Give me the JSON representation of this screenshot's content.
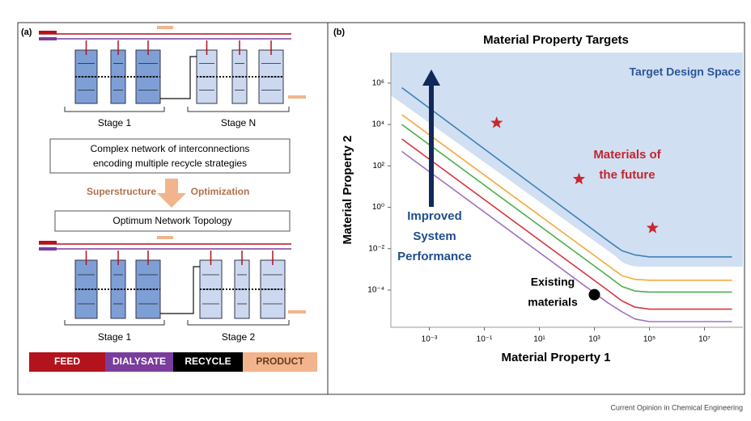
{
  "panel_a": {
    "label": "(a)",
    "top_stages": [
      "Stage 1",
      "Stage N"
    ],
    "network_box": [
      "Complex network of interconnections",
      "encoding multiple recycle strategies"
    ],
    "arrow_texts": [
      "Superstructure",
      "Optimization"
    ],
    "result_box": "Optimum Network Topology",
    "bottom_stages": [
      "Stage 1",
      "Stage 2"
    ],
    "legend": [
      {
        "text": "FEED",
        "color": "#b3131c"
      },
      {
        "text": "DIALYSATE",
        "color": "#7a3d9c"
      },
      {
        "text": "RECYCLE",
        "color": "#000000"
      },
      {
        "text": "PRODUCT",
        "color": "#f2b48c"
      }
    ]
  },
  "chart_data": {
    "type": "line",
    "label": "(b)",
    "title": "Material Property Targets",
    "x_label": "Material Property 1",
    "y_label": "Material Property 2",
    "log": true,
    "xlim": [
      4e-05,
      250000000
    ],
    "ylim": [
      1.6e-06,
      30000000
    ],
    "xticks": [
      {
        "value": 0.001,
        "label": "10⁻³"
      },
      {
        "value": 0.1,
        "label": "10⁻¹"
      },
      {
        "value": 10,
        "label": "10¹"
      },
      {
        "value": 1000,
        "label": "10³"
      },
      {
        "value": 100000,
        "label": "10⁵"
      },
      {
        "value": 10000000,
        "label": "10⁷"
      }
    ],
    "yticks": [
      {
        "value": 1000000,
        "label": "10⁶"
      },
      {
        "value": 10000,
        "label": "10⁴"
      },
      {
        "value": 100,
        "label": "10²"
      },
      {
        "value": 1,
        "label": "10⁰"
      },
      {
        "value": 0.01,
        "label": "10⁻²"
      },
      {
        "value": 0.0001,
        "label": "10⁻⁴"
      }
    ],
    "x": [
      0.0001,
      3000,
      10000,
      30000,
      100000,
      100000000
    ],
    "series": [
      {
        "color": "#3b83b8",
        "values": [
          600000,
          0.025,
          0.008,
          0.005,
          0.004,
          0.004
        ]
      },
      {
        "color": "#f2a93b",
        "values": [
          30000,
          0.0016,
          0.0005,
          0.00033,
          0.0003,
          0.0003
        ]
      },
      {
        "color": "#4bb04a",
        "values": [
          10000,
          0.0005,
          0.00015,
          9e-05,
          8e-05,
          8e-05
        ]
      },
      {
        "color": "#d9363e",
        "values": [
          2000,
          0.0001,
          3e-05,
          1.5e-05,
          1.2e-05,
          1.2e-05
        ]
      },
      {
        "color": "#a072bf",
        "values": [
          500,
          2.5e-05,
          9e-06,
          4e-06,
          3e-06,
          3e-06
        ]
      }
    ],
    "markers": [
      {
        "color": "#c62a2f",
        "shape": "star",
        "x": [
          0.28,
          275,
          130000
        ],
        "y": [
          12000,
          23,
          0.1
        ]
      },
      {
        "color": "#000000",
        "shape": "circle",
        "x": [
          1000
        ],
        "y": [
          6e-05
        ]
      }
    ],
    "annotations": {
      "target": "Target Design Space",
      "future": [
        "Materials of",
        "the future"
      ],
      "existing": [
        "Existing",
        "materials"
      ],
      "improved": [
        "Improved",
        "System",
        "Performance"
      ]
    }
  },
  "footer": "Current Opinion in Chemical Engineering"
}
